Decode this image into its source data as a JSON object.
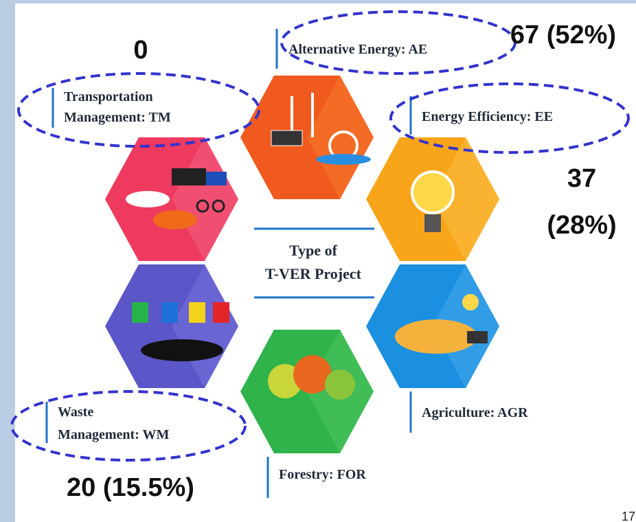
{
  "center": {
    "label": [
      "Type of",
      "T-VER Project"
    ]
  },
  "nodes": [
    {
      "label": [
        "Alternative Energy: AE"
      ],
      "count": [
        "67 (52%)"
      ]
    },
    {
      "label": [
        "Energy Efficiency: EE"
      ],
      "count": [
        "37",
        "(28%)"
      ]
    },
    {
      "label": [
        "Agriculture: AGR"
      ]
    },
    {
      "label": [
        "Forestry: FOR"
      ]
    },
    {
      "label": [
        "Waste",
        "Management: WM"
      ],
      "count": [
        "20 (15.5%)"
      ]
    },
    {
      "label": [
        "Transportation",
        "Management: TM"
      ],
      "count": [
        "0"
      ]
    }
  ],
  "page_number": "17"
}
